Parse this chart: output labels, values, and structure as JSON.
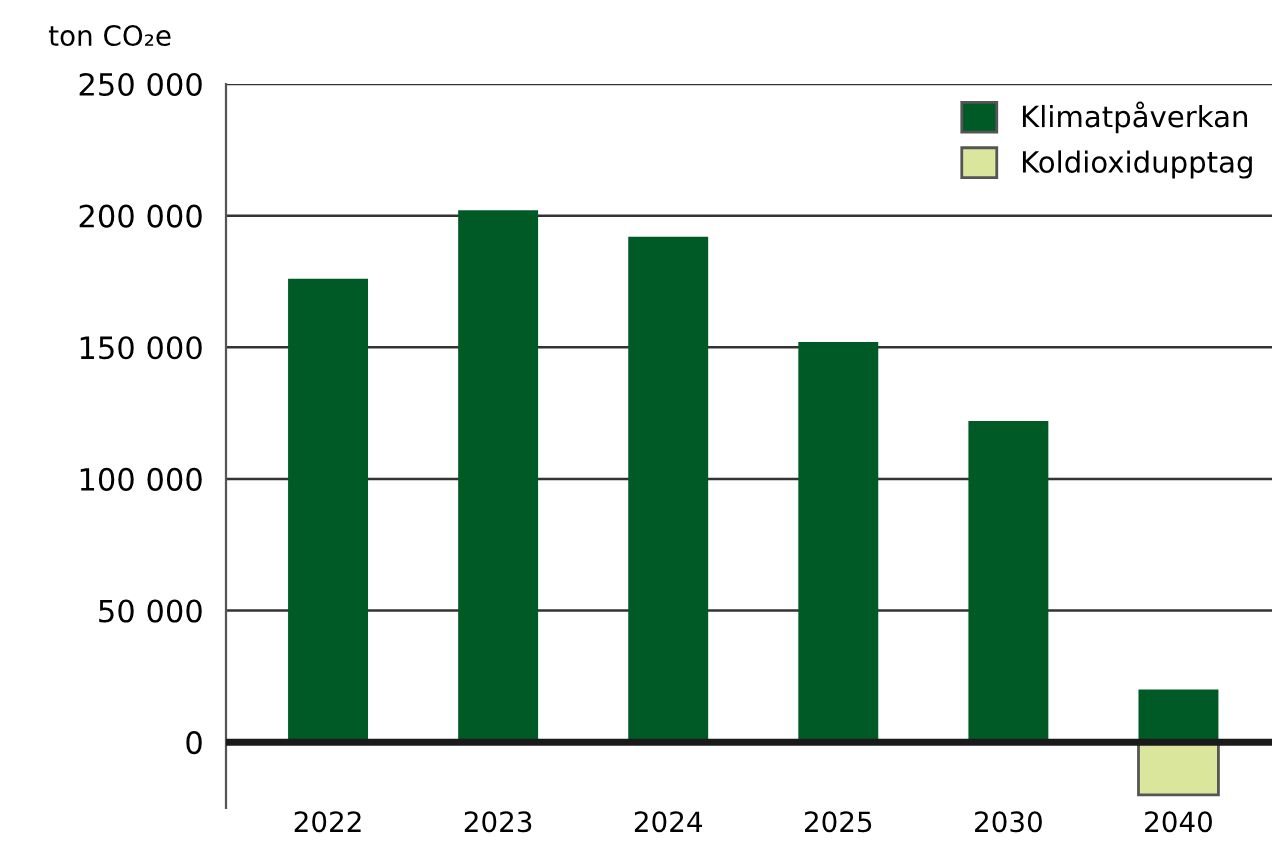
{
  "chart_data": {
    "type": "bar",
    "ylabel": "ton CO₂e",
    "stacked": true,
    "categories": [
      "2022",
      "2023",
      "2024",
      "2025",
      "2030",
      "2040"
    ],
    "series": [
      {
        "name": "Klimatpåverkan",
        "color": "#005a26",
        "values": [
          176000,
          202000,
          192000,
          152000,
          122000,
          20000
        ]
      },
      {
        "name": "Koldioxidupptag",
        "color": "#d9e69c",
        "values": [
          null,
          null,
          null,
          null,
          null,
          -20000
        ]
      }
    ],
    "ylim": [
      -25000,
      250000
    ],
    "yticks": [
      0,
      {
        "value": 50000,
        "label": "50 000"
      },
      {
        "value": 100000,
        "label": "100 000"
      },
      {
        "value": 150000,
        "label": "150 000"
      },
      {
        "value": 200000,
        "label": "200 000"
      },
      {
        "value": 250000,
        "label": "250 000"
      }
    ],
    "grid": "y",
    "legend": "top right"
  }
}
